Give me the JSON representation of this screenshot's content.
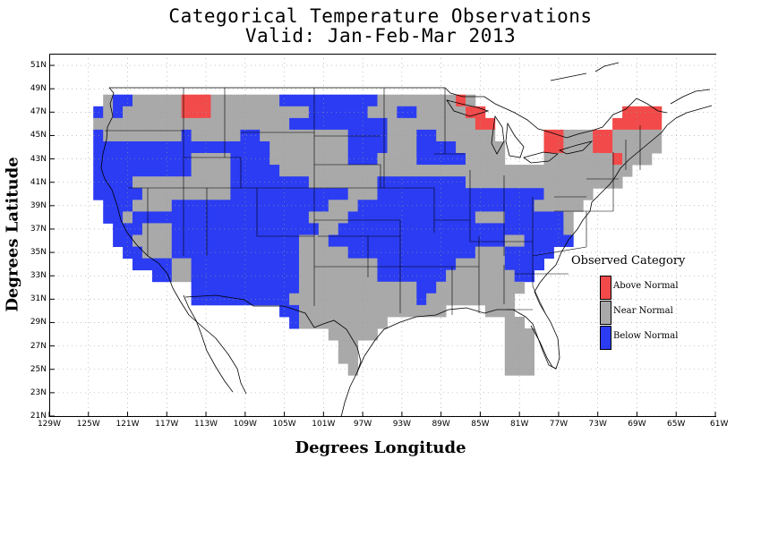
{
  "title": {
    "line1": "Categorical Temperature Observations",
    "line2": "Valid: Jan-Feb-Mar 2013"
  },
  "colors": {
    "above": "#f24a4a",
    "near": "#a9a9a9",
    "below": "#2b3cf2",
    "boundary": "#000000",
    "grid": "#9a9a9a"
  },
  "chart_data": {
    "type": "heatmap",
    "xlabel": "Degrees Longitude",
    "ylabel": "Degrees Latitude",
    "xlim": [
      -129,
      -61
    ],
    "ylim": [
      21,
      52
    ],
    "grid": true,
    "legend_title": "Observed Category",
    "legend": [
      {
        "key": "above",
        "label": "Above Normal"
      },
      {
        "key": "near",
        "label": "Near Normal"
      },
      {
        "key": "below",
        "label": "Below Normal"
      }
    ],
    "x_ticks": [
      {
        "value": -129,
        "label": "129W"
      },
      {
        "value": -125,
        "label": "125W"
      },
      {
        "value": -121,
        "label": "121W"
      },
      {
        "value": -117,
        "label": "117W"
      },
      {
        "value": -113,
        "label": "113W"
      },
      {
        "value": -109,
        "label": "109W"
      },
      {
        "value": -105,
        "label": "105W"
      },
      {
        "value": -101,
        "label": "101W"
      },
      {
        "value": -97,
        "label": "97W"
      },
      {
        "value": -93,
        "label": "93W"
      },
      {
        "value": -89,
        "label": "89W"
      },
      {
        "value": -85,
        "label": "85W"
      },
      {
        "value": -81,
        "label": "81W"
      },
      {
        "value": -77,
        "label": "77W"
      },
      {
        "value": -73,
        "label": "73W"
      },
      {
        "value": -69,
        "label": "69W"
      },
      {
        "value": -65,
        "label": "65W"
      },
      {
        "value": -61,
        "label": "61W"
      }
    ],
    "y_ticks": [
      {
        "value": 21,
        "label": "21N"
      },
      {
        "value": 23,
        "label": "23N"
      },
      {
        "value": 25,
        "label": "25N"
      },
      {
        "value": 27,
        "label": "27N"
      },
      {
        "value": 29,
        "label": "29N"
      },
      {
        "value": 31,
        "label": "31N"
      },
      {
        "value": 33,
        "label": "33N"
      },
      {
        "value": 35,
        "label": "35N"
      },
      {
        "value": 37,
        "label": "37N"
      },
      {
        "value": 39,
        "label": "39N"
      },
      {
        "value": 41,
        "label": "41N"
      },
      {
        "value": 43,
        "label": "43N"
      },
      {
        "value": 45,
        "label": "45N"
      },
      {
        "value": 47,
        "label": "47N"
      },
      {
        "value": 49,
        "label": "49N"
      },
      {
        "value": 51,
        "label": "51N"
      }
    ],
    "rows": [
      {
        "lat": 48,
        "spans": [
          [
            -123.5,
            -122.5,
            "near"
          ],
          [
            -122.5,
            -120.5,
            "below"
          ],
          [
            -120.5,
            -115.5,
            "near"
          ],
          [
            -115.5,
            -112.5,
            "above"
          ],
          [
            -112.5,
            -105.5,
            "near"
          ],
          [
            -105.5,
            -95.5,
            "below"
          ],
          [
            -95.5,
            -87.5,
            "near"
          ],
          [
            -87.5,
            -86.5,
            "above"
          ],
          [
            -86.5,
            -85.5,
            "near"
          ]
        ]
      },
      {
        "lat": 47,
        "spans": [
          [
            -124.5,
            -123.5,
            "below"
          ],
          [
            -123.5,
            -122.5,
            "near"
          ],
          [
            -122.5,
            -121.5,
            "below"
          ],
          [
            -121.5,
            -115.5,
            "near"
          ],
          [
            -115.5,
            -112.5,
            "above"
          ],
          [
            -112.5,
            -102.5,
            "near"
          ],
          [
            -102.5,
            -96.5,
            "below"
          ],
          [
            -96.5,
            -93.5,
            "near"
          ],
          [
            -93.5,
            -91.5,
            "below"
          ],
          [
            -91.5,
            -86.5,
            "near"
          ],
          [
            -86.5,
            -84.5,
            "above"
          ],
          [
            -70.5,
            -66.5,
            "above"
          ]
        ]
      },
      {
        "lat": 46,
        "spans": [
          [
            -124.5,
            -104.5,
            "near"
          ],
          [
            -104.5,
            -94.5,
            "below"
          ],
          [
            -94.5,
            -85.5,
            "near"
          ],
          [
            -85.5,
            -83.5,
            "above"
          ],
          [
            -71.5,
            -66.5,
            "above"
          ]
        ]
      },
      {
        "lat": 45,
        "spans": [
          [
            -124.5,
            -123.5,
            "below"
          ],
          [
            -123.5,
            -115.5,
            "near"
          ],
          [
            -115.5,
            -114.5,
            "below"
          ],
          [
            -114.5,
            -109.5,
            "near"
          ],
          [
            -109.5,
            -107.5,
            "below"
          ],
          [
            -107.5,
            -98.5,
            "near"
          ],
          [
            -98.5,
            -94.5,
            "below"
          ],
          [
            -94.5,
            -91.5,
            "near"
          ],
          [
            -91.5,
            -89.5,
            "below"
          ],
          [
            -89.5,
            -83.5,
            "near"
          ],
          [
            -78.5,
            -76.5,
            "above"
          ],
          [
            -76.5,
            -73.5,
            "near"
          ],
          [
            -73.5,
            -71.5,
            "above"
          ],
          [
            -71.5,
            -66.5,
            "near"
          ]
        ]
      },
      {
        "lat": 44,
        "spans": [
          [
            -124.5,
            -110.5,
            "below"
          ],
          [
            -110.5,
            -106.5,
            "below"
          ],
          [
            -106.5,
            -98.5,
            "near"
          ],
          [
            -98.5,
            -94.5,
            "below"
          ],
          [
            -94.5,
            -91.5,
            "near"
          ],
          [
            -91.5,
            -87.5,
            "below"
          ],
          [
            -87.5,
            -82.5,
            "near"
          ],
          [
            -78.5,
            -76.5,
            "above"
          ],
          [
            -76.5,
            -73.5,
            "near"
          ],
          [
            -73.5,
            -71.5,
            "above"
          ],
          [
            -71.5,
            -66.5,
            "near"
          ]
        ]
      },
      {
        "lat": 43,
        "spans": [
          [
            -124.5,
            -114.5,
            "below"
          ],
          [
            -114.5,
            -110.5,
            "near"
          ],
          [
            -110.5,
            -106.5,
            "below"
          ],
          [
            -106.5,
            -98.5,
            "near"
          ],
          [
            -98.5,
            -95.5,
            "below"
          ],
          [
            -95.5,
            -91.5,
            "near"
          ],
          [
            -91.5,
            -86.5,
            "below"
          ],
          [
            -86.5,
            -82.5,
            "near"
          ],
          [
            -78.5,
            -71.5,
            "near"
          ],
          [
            -71.5,
            -70.5,
            "above"
          ],
          [
            -70.5,
            -67.5,
            "near"
          ]
        ]
      },
      {
        "lat": 42,
        "spans": [
          [
            -124.5,
            -114.5,
            "below"
          ],
          [
            -114.5,
            -110.5,
            "near"
          ],
          [
            -110.5,
            -105.5,
            "below"
          ],
          [
            -105.5,
            -86.5,
            "near"
          ],
          [
            -86.5,
            -82.5,
            "near"
          ],
          [
            -82.5,
            -69.5,
            "near"
          ]
        ]
      },
      {
        "lat": 41,
        "spans": [
          [
            -124.5,
            -120.5,
            "below"
          ],
          [
            -120.5,
            -110.5,
            "near"
          ],
          [
            -110.5,
            -102.5,
            "below"
          ],
          [
            -102.5,
            -95.5,
            "near"
          ],
          [
            -95.5,
            -86.5,
            "below"
          ],
          [
            -86.5,
            -70.5,
            "near"
          ]
        ]
      },
      {
        "lat": 40,
        "spans": [
          [
            -124.5,
            -119.5,
            "below"
          ],
          [
            -119.5,
            -110.5,
            "near"
          ],
          [
            -110.5,
            -100.5,
            "below"
          ],
          [
            -100.5,
            -98.5,
            "below"
          ],
          [
            -98.5,
            -95.5,
            "near"
          ],
          [
            -95.5,
            -78.5,
            "below"
          ],
          [
            -78.5,
            -73.5,
            "near"
          ]
        ]
      },
      {
        "lat": 39,
        "spans": [
          [
            -123.5,
            -120.5,
            "below"
          ],
          [
            -120.5,
            -116.5,
            "near"
          ],
          [
            -116.5,
            -100.5,
            "below"
          ],
          [
            -100.5,
            -97.5,
            "near"
          ],
          [
            -97.5,
            -79.5,
            "below"
          ],
          [
            -79.5,
            -74.5,
            "near"
          ]
        ]
      },
      {
        "lat": 38,
        "spans": [
          [
            -123.5,
            -121.5,
            "below"
          ],
          [
            -121.5,
            -120.5,
            "near"
          ],
          [
            -120.5,
            -102.5,
            "below"
          ],
          [
            -102.5,
            -98.5,
            "near"
          ],
          [
            -98.5,
            -85.5,
            "below"
          ],
          [
            -85.5,
            -82.5,
            "near"
          ],
          [
            -82.5,
            -76.5,
            "below"
          ],
          [
            -76.5,
            -75.5,
            "near"
          ]
        ]
      },
      {
        "lat": 37,
        "spans": [
          [
            -122.5,
            -119.5,
            "below"
          ],
          [
            -119.5,
            -116.5,
            "near"
          ],
          [
            -116.5,
            -112.5,
            "below"
          ],
          [
            -112.5,
            -101.5,
            "below"
          ],
          [
            -101.5,
            -99.5,
            "near"
          ],
          [
            -99.5,
            -88.5,
            "below"
          ],
          [
            -88.5,
            -76.5,
            "below"
          ],
          [
            -76.5,
            -75.5,
            "near"
          ]
        ]
      },
      {
        "lat": 36,
        "spans": [
          [
            -122.5,
            -120.5,
            "below"
          ],
          [
            -120.5,
            -116.5,
            "near"
          ],
          [
            -116.5,
            -114.5,
            "below"
          ],
          [
            -114.5,
            -103.5,
            "below"
          ],
          [
            -103.5,
            -100.5,
            "near"
          ],
          [
            -100.5,
            -82.5,
            "below"
          ],
          [
            -82.5,
            -80.5,
            "near"
          ],
          [
            -80.5,
            -75.5,
            "below"
          ]
        ]
      },
      {
        "lat": 35,
        "spans": [
          [
            -121.5,
            -119.5,
            "below"
          ],
          [
            -119.5,
            -116.5,
            "near"
          ],
          [
            -116.5,
            -114.5,
            "below"
          ],
          [
            -114.5,
            -103.5,
            "below"
          ],
          [
            -103.5,
            -98.5,
            "near"
          ],
          [
            -98.5,
            -89.5,
            "below"
          ],
          [
            -89.5,
            -85.5,
            "below"
          ],
          [
            -85.5,
            -82.5,
            "near"
          ],
          [
            -82.5,
            -77.5,
            "below"
          ]
        ]
      },
      {
        "lat": 34,
        "spans": [
          [
            -120.5,
            -116.5,
            "below"
          ],
          [
            -116.5,
            -114.5,
            "near"
          ],
          [
            -114.5,
            -103.5,
            "below"
          ],
          [
            -103.5,
            -95.5,
            "near"
          ],
          [
            -95.5,
            -87.5,
            "below"
          ],
          [
            -87.5,
            -82.5,
            "near"
          ],
          [
            -82.5,
            -78.5,
            "below"
          ]
        ]
      },
      {
        "lat": 33,
        "spans": [
          [
            -118.5,
            -116.5,
            "below"
          ],
          [
            -116.5,
            -114.5,
            "near"
          ],
          [
            -114.5,
            -103.5,
            "below"
          ],
          [
            -103.5,
            -95.5,
            "near"
          ],
          [
            -95.5,
            -88.5,
            "below"
          ],
          [
            -88.5,
            -81.5,
            "near"
          ],
          [
            -81.5,
            -79.5,
            "below"
          ]
        ]
      },
      {
        "lat": 32,
        "spans": [
          [
            -114.5,
            -103.5,
            "below"
          ],
          [
            -103.5,
            -91.5,
            "near"
          ],
          [
            -91.5,
            -89.5,
            "below"
          ],
          [
            -89.5,
            -80.5,
            "near"
          ]
        ]
      },
      {
        "lat": 31,
        "spans": [
          [
            -114.5,
            -104.5,
            "below"
          ],
          [
            -104.5,
            -91.5,
            "near"
          ],
          [
            -91.5,
            -90.5,
            "below"
          ],
          [
            -90.5,
            -81.5,
            "near"
          ]
        ]
      },
      {
        "lat": 30,
        "spans": [
          [
            -105.5,
            -103.5,
            "below"
          ],
          [
            -103.5,
            -94.5,
            "near"
          ],
          [
            -94.5,
            -88.5,
            "near"
          ],
          [
            -84.5,
            -81.5,
            "near"
          ]
        ]
      },
      {
        "lat": 29,
        "spans": [
          [
            -104.5,
            -103.5,
            "below"
          ],
          [
            -103.5,
            -94.5,
            "near"
          ],
          [
            -82.5,
            -80.5,
            "near"
          ]
        ]
      },
      {
        "lat": 28,
        "spans": [
          [
            -100.5,
            -95.5,
            "near"
          ],
          [
            -82.5,
            -79.5,
            "near"
          ]
        ]
      },
      {
        "lat": 27,
        "spans": [
          [
            -99.5,
            -97.5,
            "near"
          ],
          [
            -82.5,
            -79.5,
            "near"
          ]
        ]
      },
      {
        "lat": 26,
        "spans": [
          [
            -99.5,
            -97.5,
            "near"
          ],
          [
            -82.5,
            -79.5,
            "near"
          ]
        ]
      },
      {
        "lat": 25,
        "spans": [
          [
            -98.5,
            -97.5,
            "near"
          ],
          [
            -82.5,
            -79.5,
            "near"
          ]
        ]
      }
    ]
  }
}
